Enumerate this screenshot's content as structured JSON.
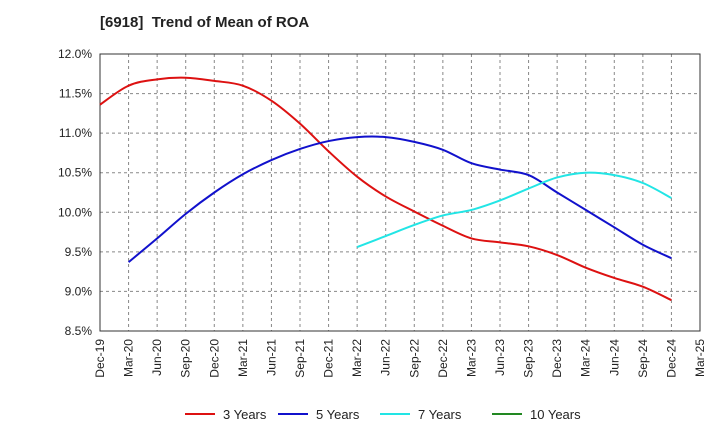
{
  "chart_data": {
    "type": "line",
    "title": "[6918]  Trend of Mean of ROA",
    "xlabel": "",
    "ylabel": "",
    "ylim": [
      8.5,
      12.0
    ],
    "y_ticks": [
      "8.5%",
      "9.0%",
      "9.5%",
      "10.0%",
      "10.5%",
      "11.0%",
      "11.5%",
      "12.0%"
    ],
    "x_ticks": [
      "Dec-19",
      "Mar-20",
      "Jun-20",
      "Sep-20",
      "Dec-20",
      "Mar-21",
      "Jun-21",
      "Sep-21",
      "Dec-21",
      "Mar-22",
      "Jun-22",
      "Sep-22",
      "Dec-22",
      "Mar-23",
      "Jun-23",
      "Sep-23",
      "Dec-23",
      "Mar-24",
      "Jun-24",
      "Sep-24",
      "Dec-24",
      "Mar-25"
    ],
    "grid": true,
    "legend_position": "bottom",
    "series": [
      {
        "name": "3 Years",
        "color": "#dd1111",
        "points": [
          [
            "Dec-19",
            11.36
          ],
          [
            "Mar-20",
            11.6
          ],
          [
            "Jun-20",
            11.68
          ],
          [
            "Sep-20",
            11.7
          ],
          [
            "Dec-20",
            11.66
          ],
          [
            "Mar-21",
            11.6
          ],
          [
            "Jun-21",
            11.41
          ],
          [
            "Sep-21",
            11.12
          ],
          [
            "Dec-21",
            10.77
          ],
          [
            "Mar-22",
            10.45
          ],
          [
            "Jun-22",
            10.2
          ],
          [
            "Sep-22",
            10.01
          ],
          [
            "Dec-22",
            9.83
          ],
          [
            "Mar-23",
            9.67
          ],
          [
            "Jun-23",
            9.62
          ],
          [
            "Sep-23",
            9.57
          ],
          [
            "Dec-23",
            9.46
          ],
          [
            "Mar-24",
            9.3
          ],
          [
            "Jun-24",
            9.17
          ],
          [
            "Sep-24",
            9.06
          ],
          [
            "Dec-24",
            8.89
          ]
        ]
      },
      {
        "name": "5 Years",
        "color": "#1111cc",
        "points": [
          [
            "Mar-20",
            9.37
          ],
          [
            "Jun-20",
            9.67
          ],
          [
            "Sep-20",
            9.98
          ],
          [
            "Dec-20",
            10.25
          ],
          [
            "Mar-21",
            10.48
          ],
          [
            "Jun-21",
            10.66
          ],
          [
            "Sep-21",
            10.8
          ],
          [
            "Dec-21",
            10.9
          ],
          [
            "Mar-22",
            10.95
          ],
          [
            "Jun-22",
            10.95
          ],
          [
            "Sep-22",
            10.89
          ],
          [
            "Dec-22",
            10.79
          ],
          [
            "Mar-23",
            10.62
          ],
          [
            "Jun-23",
            10.54
          ],
          [
            "Sep-23",
            10.47
          ],
          [
            "Dec-23",
            10.25
          ],
          [
            "Mar-24",
            10.03
          ],
          [
            "Jun-24",
            9.81
          ],
          [
            "Sep-24",
            9.59
          ],
          [
            "Dec-24",
            9.42
          ]
        ]
      },
      {
        "name": "7 Years",
        "color": "#22e5e5",
        "points": [
          [
            "Mar-22",
            9.56
          ],
          [
            "Jun-22",
            9.7
          ],
          [
            "Sep-22",
            9.84
          ],
          [
            "Dec-22",
            9.96
          ],
          [
            "Mar-23",
            10.03
          ],
          [
            "Jun-23",
            10.15
          ],
          [
            "Sep-23",
            10.3
          ],
          [
            "Dec-23",
            10.44
          ],
          [
            "Mar-24",
            10.5
          ],
          [
            "Jun-24",
            10.47
          ],
          [
            "Sep-24",
            10.37
          ],
          [
            "Dec-24",
            10.18
          ]
        ]
      },
      {
        "name": "10 Years",
        "color": "#228822",
        "points": []
      }
    ]
  }
}
